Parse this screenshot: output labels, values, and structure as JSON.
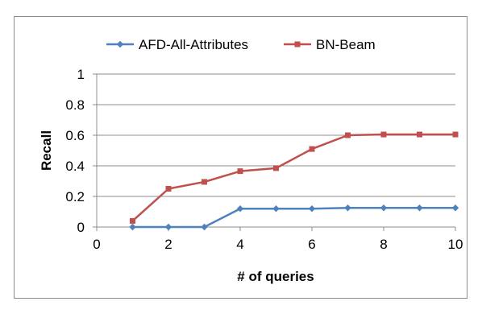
{
  "chart_data": {
    "type": "line",
    "xlabel": "# of queries",
    "ylabel": "Recall",
    "xlim": [
      0,
      10
    ],
    "ylim": [
      0,
      1
    ],
    "x_ticks": [
      "0",
      "2",
      "4",
      "6",
      "8",
      "10"
    ],
    "y_ticks": [
      "0",
      "0.2",
      "0.4",
      "0.6",
      "0.8",
      "1"
    ],
    "grid": "horizontal",
    "legend_position": "top",
    "series": [
      {
        "name": "AFD-All-Attributes",
        "color": "#4f81bd",
        "marker": "diamond",
        "x": [
          1,
          2,
          3,
          4,
          5,
          6,
          7,
          8,
          9,
          10
        ],
        "y": [
          0,
          0,
          0,
          0.12,
          0.12,
          0.12,
          0.125,
          0.125,
          0.125,
          0.125
        ]
      },
      {
        "name": "BN-Beam",
        "color": "#c0504d",
        "marker": "square",
        "x": [
          1,
          2,
          3,
          4,
          5,
          6,
          7,
          8,
          9,
          10
        ],
        "y": [
          0.04,
          0.25,
          0.295,
          0.365,
          0.385,
          0.51,
          0.6,
          0.605,
          0.605,
          0.605
        ]
      }
    ]
  }
}
